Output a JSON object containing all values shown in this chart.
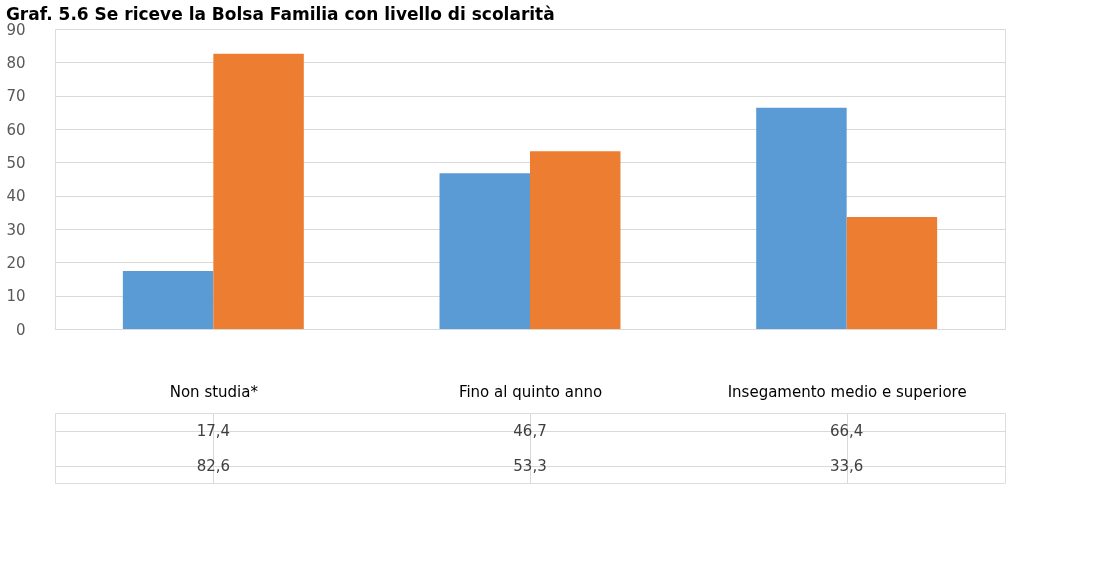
{
  "chart_data": {
    "type": "bar",
    "title": "Graf. 5.6 Se riceve la Bolsa Familia con livello di scolarità",
    "categories": [
      "Non studia*",
      "Fino al quinto anno",
      "Insegamento medio e superiore"
    ],
    "series": [
      {
        "color": "#5b9bd5",
        "values": [
          17.4,
          46.7,
          66.4
        ],
        "value_labels": [
          "17,4",
          "46,7",
          "66,4"
        ]
      },
      {
        "color": "#ed7d31",
        "values": [
          82.6,
          53.3,
          33.6
        ],
        "value_labels": [
          "82,6",
          "53,3",
          "33,6"
        ]
      }
    ],
    "ylim": [
      0,
      90
    ],
    "yticks": [
      0,
      10,
      20,
      30,
      40,
      50,
      60,
      70,
      80,
      90
    ],
    "grid": "y"
  }
}
